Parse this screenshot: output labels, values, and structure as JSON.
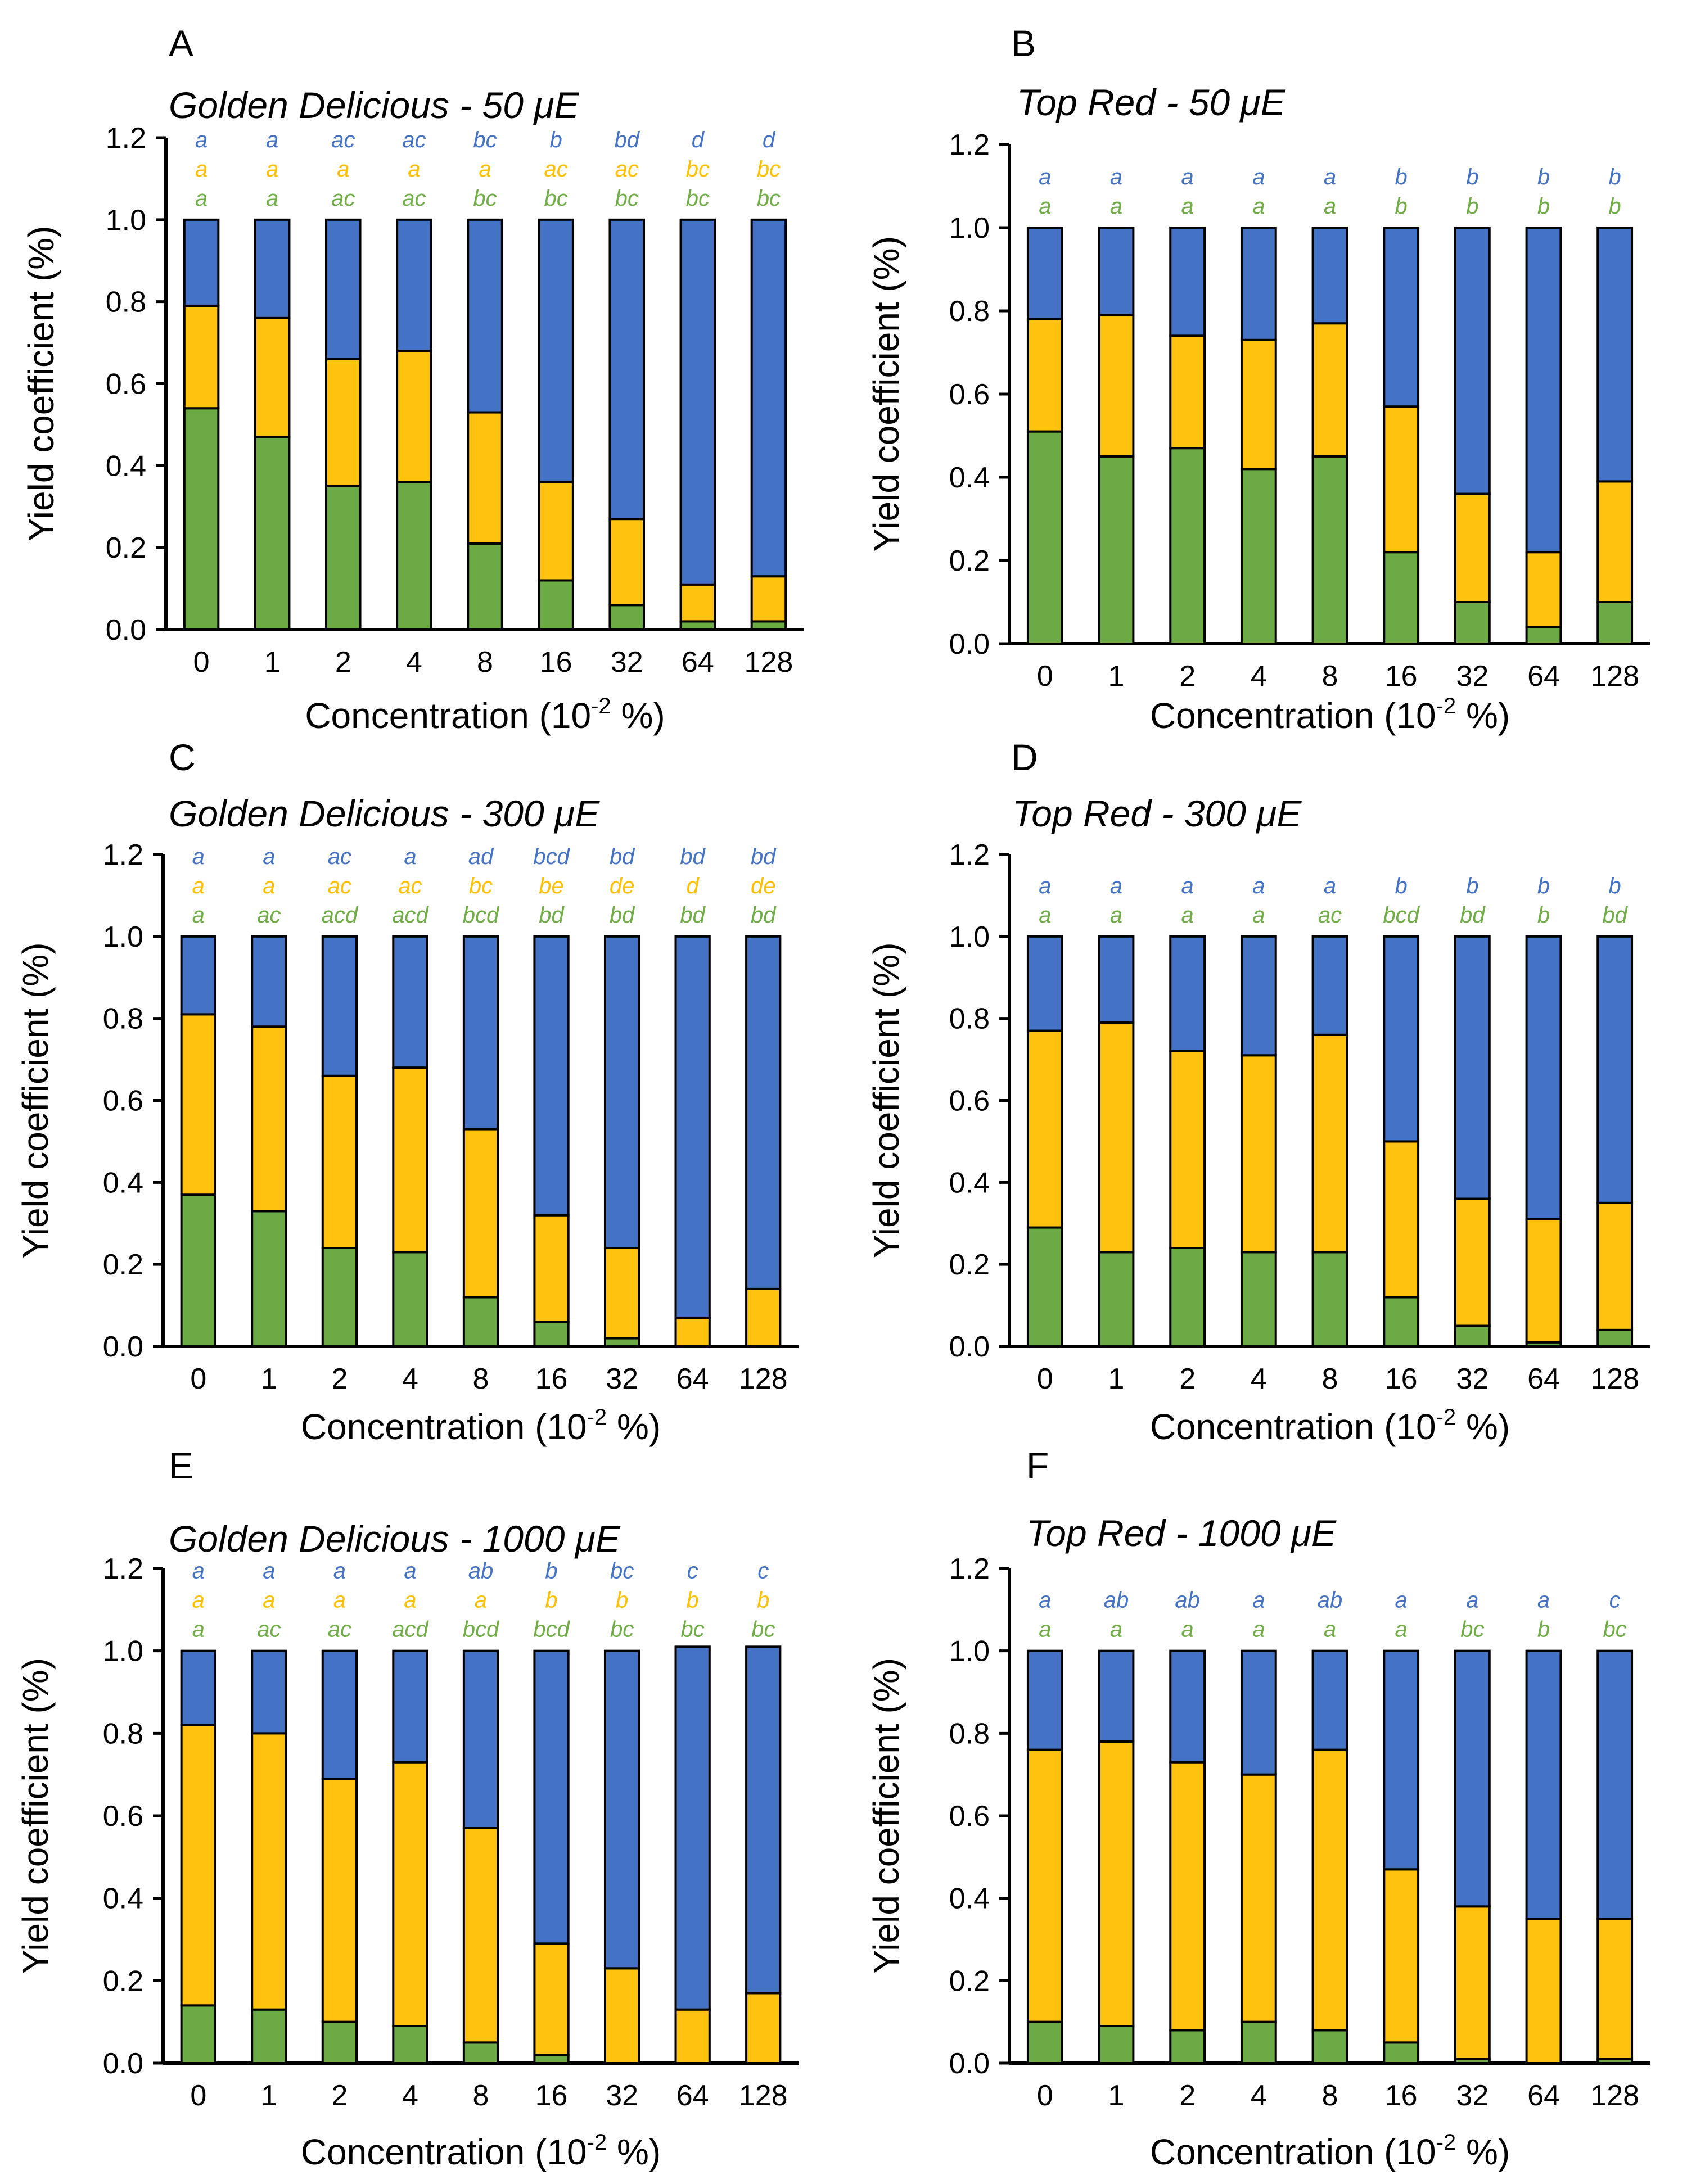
{
  "colors": {
    "green": "#6BAA44",
    "yellow": "#FFC20E",
    "blue": "#4472C4",
    "sig_green": "#70AD47",
    "sig_yellow": "#FFC000",
    "sig_blue": "#4472C4"
  },
  "chart_data": [
    {
      "type": "bar",
      "stacked": true,
      "panel": "A",
      "title": "Golden Delicious - 50 μE",
      "xlabel": "Concentration (10-2 %)",
      "ylabel": "Yield coefficient (%)",
      "ylim": [
        0,
        1.2
      ],
      "yticks": [
        "0.0",
        "0.2",
        "0.4",
        "0.6",
        "0.8",
        "1.0",
        "1.2"
      ],
      "categories": [
        "0",
        "1",
        "2",
        "4",
        "8",
        "16",
        "32",
        "64",
        "128"
      ],
      "series": [
        {
          "name": "green",
          "values": [
            0.54,
            0.47,
            0.35,
            0.36,
            0.21,
            0.12,
            0.06,
            0.02,
            0.02
          ]
        },
        {
          "name": "yellow",
          "values": [
            0.25,
            0.29,
            0.31,
            0.32,
            0.32,
            0.24,
            0.21,
            0.09,
            0.11
          ]
        },
        {
          "name": "blue",
          "values": [
            0.21,
            0.24,
            0.34,
            0.32,
            0.47,
            0.64,
            0.73,
            0.89,
            0.87
          ]
        }
      ],
      "significance": {
        "blue": [
          "a",
          "a",
          "ac",
          "ac",
          "bc",
          "b",
          "bd",
          "d",
          "d"
        ],
        "yellow": [
          "a",
          "a",
          "a",
          "a",
          "a",
          "ac",
          "ac",
          "bc",
          "bc"
        ],
        "green": [
          "a",
          "a",
          "ac",
          "ac",
          "bc",
          "bc",
          "bc",
          "bc",
          "bc"
        ]
      }
    },
    {
      "type": "bar",
      "stacked": true,
      "panel": "B",
      "title": "Top Red - 50 μE",
      "xlabel": "Concentration (10-2 %)",
      "ylabel": "Yield coefficient (%)",
      "ylim": [
        0,
        1.2
      ],
      "yticks": [
        "0.0",
        "0.2",
        "0.4",
        "0.6",
        "0.8",
        "1.0",
        "1.2"
      ],
      "categories": [
        "0",
        "1",
        "2",
        "4",
        "8",
        "16",
        "32",
        "64",
        "128"
      ],
      "series": [
        {
          "name": "green",
          "values": [
            0.51,
            0.45,
            0.47,
            0.42,
            0.45,
            0.22,
            0.1,
            0.04,
            0.1
          ]
        },
        {
          "name": "yellow",
          "values": [
            0.27,
            0.34,
            0.27,
            0.31,
            0.32,
            0.35,
            0.26,
            0.18,
            0.29
          ]
        },
        {
          "name": "blue",
          "values": [
            0.22,
            0.21,
            0.26,
            0.27,
            0.23,
            0.43,
            0.64,
            0.78,
            0.61
          ]
        }
      ],
      "significance": {
        "blue": [
          "a",
          "a",
          "a",
          "a",
          "a",
          "b",
          "b",
          "b",
          "b"
        ],
        "green": [
          "a",
          "a",
          "a",
          "a",
          "a",
          "b",
          "b",
          "b",
          "b"
        ]
      }
    },
    {
      "type": "bar",
      "stacked": true,
      "panel": "C",
      "title": "Golden Delicious - 300 μE",
      "xlabel": "Concentration (10-2 %)",
      "ylabel": "Yield coefficient (%)",
      "ylim": [
        0,
        1.2
      ],
      "yticks": [
        "0.0",
        "0.2",
        "0.4",
        "0.6",
        "0.8",
        "1.0",
        "1.2"
      ],
      "categories": [
        "0",
        "1",
        "2",
        "4",
        "8",
        "16",
        "32",
        "64",
        "128"
      ],
      "series": [
        {
          "name": "green",
          "values": [
            0.37,
            0.33,
            0.24,
            0.23,
            0.12,
            0.06,
            0.02,
            0.0,
            0.0
          ]
        },
        {
          "name": "yellow",
          "values": [
            0.44,
            0.45,
            0.42,
            0.45,
            0.41,
            0.26,
            0.22,
            0.07,
            0.14
          ]
        },
        {
          "name": "blue",
          "values": [
            0.19,
            0.22,
            0.34,
            0.32,
            0.47,
            0.68,
            0.76,
            0.93,
            0.86
          ]
        }
      ],
      "significance": {
        "blue": [
          "a",
          "a",
          "ac",
          "a",
          "ad",
          "bcd",
          "bd",
          "bd",
          "bd"
        ],
        "yellow": [
          "a",
          "a",
          "ac",
          "ac",
          "bc",
          "be",
          "de",
          "d",
          "de"
        ],
        "green": [
          "a",
          "ac",
          "acd",
          "acd",
          "bcd",
          "bd",
          "bd",
          "bd",
          "bd"
        ]
      }
    },
    {
      "type": "bar",
      "stacked": true,
      "panel": "D",
      "title": "Top Red - 300 μE",
      "xlabel": "Concentration (10-2 %)",
      "ylabel": "Yield coefficient (%)",
      "ylim": [
        0,
        1.2
      ],
      "yticks": [
        "0.0",
        "0.2",
        "0.4",
        "0.6",
        "0.8",
        "1.0",
        "1.2"
      ],
      "categories": [
        "0",
        "1",
        "2",
        "4",
        "8",
        "16",
        "32",
        "64",
        "128"
      ],
      "series": [
        {
          "name": "green",
          "values": [
            0.29,
            0.23,
            0.24,
            0.23,
            0.23,
            0.12,
            0.05,
            0.01,
            0.04
          ]
        },
        {
          "name": "yellow",
          "values": [
            0.48,
            0.56,
            0.48,
            0.48,
            0.53,
            0.38,
            0.31,
            0.3,
            0.31
          ]
        },
        {
          "name": "blue",
          "values": [
            0.23,
            0.21,
            0.28,
            0.29,
            0.24,
            0.5,
            0.64,
            0.69,
            0.65
          ]
        }
      ],
      "significance": {
        "blue": [
          "a",
          "a",
          "a",
          "a",
          "a",
          "b",
          "b",
          "b",
          "b"
        ],
        "green": [
          "a",
          "a",
          "a",
          "a",
          "ac",
          "bcd",
          "bd",
          "b",
          "bd"
        ]
      }
    },
    {
      "type": "bar",
      "stacked": true,
      "panel": "E",
      "title": "Golden Delicious - 1000 μE",
      "xlabel": "Concentration (10-2 %)",
      "ylabel": "Yield coefficient (%)",
      "ylim": [
        0,
        1.2
      ],
      "yticks": [
        "0.0",
        "0.2",
        "0.4",
        "0.6",
        "0.8",
        "1.0",
        "1.2"
      ],
      "categories": [
        "0",
        "1",
        "2",
        "4",
        "8",
        "16",
        "32",
        "64",
        "128"
      ],
      "series": [
        {
          "name": "green",
          "values": [
            0.14,
            0.13,
            0.1,
            0.09,
            0.05,
            0.02,
            0.0,
            0.0,
            0.0
          ]
        },
        {
          "name": "yellow",
          "values": [
            0.68,
            0.67,
            0.59,
            0.64,
            0.52,
            0.27,
            0.23,
            0.13,
            0.17
          ]
        },
        {
          "name": "blue",
          "values": [
            0.18,
            0.2,
            0.31,
            0.27,
            0.43,
            0.71,
            0.77,
            0.88,
            0.84
          ]
        }
      ],
      "significance": {
        "blue": [
          "a",
          "a",
          "a",
          "a",
          "ab",
          "b",
          "bc",
          "c",
          "c"
        ],
        "yellow": [
          "a",
          "a",
          "a",
          "a",
          "a",
          "b",
          "b",
          "b",
          "b"
        ],
        "green": [
          "a",
          "ac",
          "ac",
          "acd",
          "bcd",
          "bcd",
          "bc",
          "bc",
          "bc"
        ]
      }
    },
    {
      "type": "bar",
      "stacked": true,
      "panel": "F",
      "title": "Top Red - 1000 μE",
      "xlabel": "Concentration (10-2 %)",
      "ylabel": "Yield coefficient (%)",
      "ylim": [
        0,
        1.2
      ],
      "yticks": [
        "0.0",
        "0.2",
        "0.4",
        "0.6",
        "0.8",
        "1.0",
        "1.2"
      ],
      "categories": [
        "0",
        "1",
        "2",
        "4",
        "8",
        "16",
        "32",
        "64",
        "128"
      ],
      "series": [
        {
          "name": "green",
          "values": [
            0.1,
            0.09,
            0.08,
            0.1,
            0.08,
            0.05,
            0.01,
            0.0,
            0.01
          ]
        },
        {
          "name": "yellow",
          "values": [
            0.66,
            0.69,
            0.65,
            0.6,
            0.68,
            0.42,
            0.37,
            0.35,
            0.34
          ]
        },
        {
          "name": "blue",
          "values": [
            0.24,
            0.22,
            0.27,
            0.3,
            0.24,
            0.53,
            0.62,
            0.65,
            0.65
          ]
        }
      ],
      "significance": {
        "blue": [
          "a",
          "ab",
          "ab",
          "a",
          "ab",
          "a",
          "a",
          "a",
          "c"
        ],
        "green": [
          "a",
          "a",
          "a",
          "a",
          "a",
          "a",
          "bc",
          "b",
          "bc"
        ]
      }
    }
  ]
}
